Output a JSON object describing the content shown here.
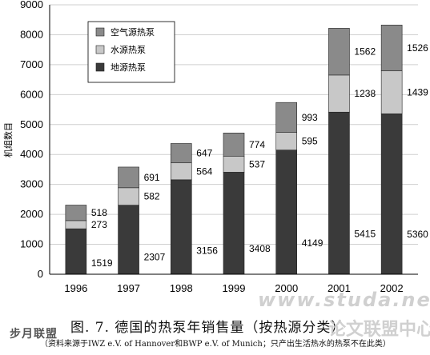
{
  "chart_data": {
    "type": "bar",
    "stacked": true,
    "categories": [
      "1996",
      "1997",
      "1998",
      "1999",
      "2000",
      "2001",
      "2002"
    ],
    "series": [
      {
        "name": "地源热泵",
        "values": [
          1519,
          2307,
          3156,
          3408,
          4149,
          5415,
          5360
        ],
        "color": "#3a3a3a"
      },
      {
        "name": "水源热泵",
        "values": [
          273,
          582,
          564,
          537,
          595,
          1238,
          1439
        ],
        "color": "#c8c8c8"
      },
      {
        "name": "空气源热泵",
        "values": [
          518,
          691,
          647,
          774,
          993,
          1562,
          1526
        ],
        "color": "#8a8a8a"
      }
    ],
    "ylim": [
      0,
      9000
    ],
    "yticks": [
      0,
      1000,
      2000,
      3000,
      4000,
      5000,
      6000,
      7000,
      8000,
      9000
    ],
    "ylabel": "机组数目",
    "legend_order": [
      "空气源热泵",
      "水源热泵",
      "地源热泵"
    ],
    "legend_position": "top-left",
    "grid": true
  },
  "caption": "图. 7. 德国的热泵年销售量（按热源分类）",
  "source": "（资料来源于IWZ e.V. of Hannover和BWP e.V. of Munich；只产出生活热水的热泵不在此类）",
  "watermark_left": "步月联盟",
  "watermark_url": "www.studa.net",
  "watermark_right": "论文联盟中心"
}
